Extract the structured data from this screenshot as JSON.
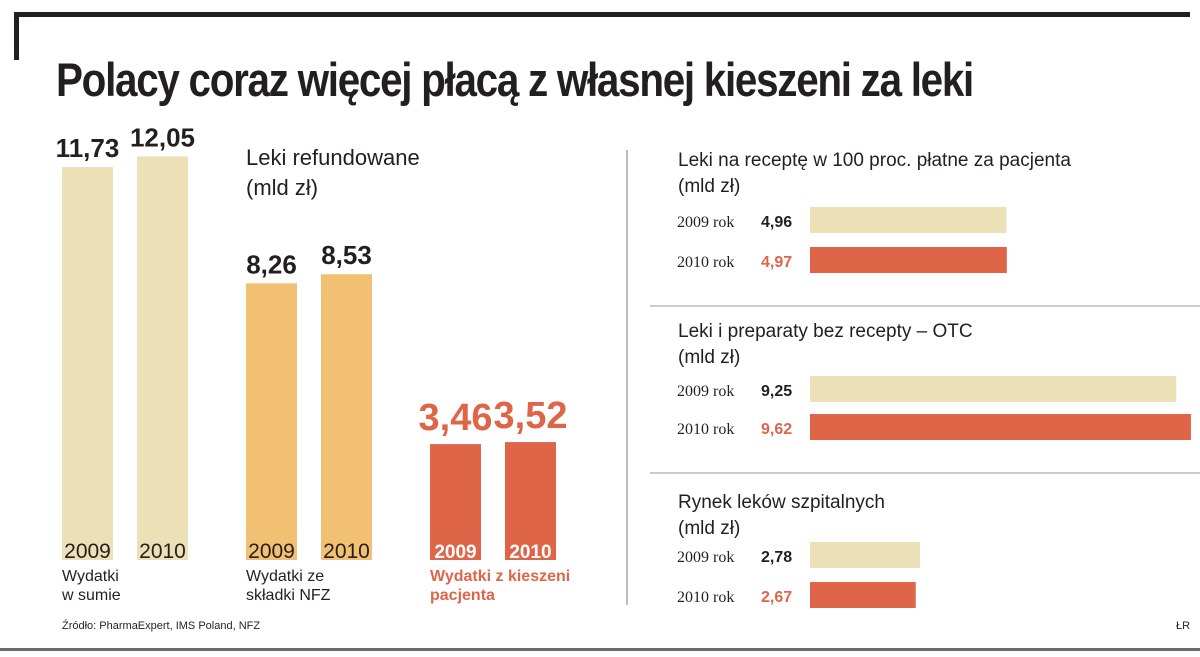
{
  "title": "Polacy coraz więcej płacą z własnej kieszeni za leki",
  "source": "Źródło: PharmaExpert, IMS Poland, NFZ",
  "credit": "ŁR",
  "colors": {
    "beige": "#ece0b7",
    "orange": "#f2c073",
    "red": "#df6548",
    "text": "#231f20"
  },
  "chart_data": [
    {
      "type": "bar",
      "title": "Leki refundowane",
      "unit": "(mld zł)",
      "categories": [
        "2009",
        "2010"
      ],
      "series": [
        {
          "name": "Wydatki w sumie",
          "values": [
            11.73,
            12.05
          ],
          "labels": [
            "11,73",
            "12,05"
          ],
          "color": "beige"
        },
        {
          "name": "Wydatki ze składki NFZ",
          "values": [
            8.26,
            8.53
          ],
          "labels": [
            "8,26",
            "8,53"
          ],
          "color": "orange"
        },
        {
          "name": "Wydatki z kieszeni pacjenta",
          "values": [
            3.46,
            3.52
          ],
          "labels": [
            "3,46",
            "3,52"
          ],
          "color": "red"
        }
      ],
      "group_labels": [
        "Wydatki\nw sumie",
        "Wydatki ze\nskładki NFZ",
        "Wydatki z kieszeni\npacjenta"
      ]
    },
    {
      "type": "bar",
      "orientation": "horizontal",
      "title": "Leki na receptę w 100 proc. płatne za pacjenta",
      "unit": "(mld zł)",
      "categories": [
        "2009 rok",
        "2010 rok"
      ],
      "values": [
        4.96,
        4.97
      ],
      "labels": [
        "4,96",
        "4,97"
      ]
    },
    {
      "type": "bar",
      "orientation": "horizontal",
      "title": "Leki i preparaty bez recepty – OTC",
      "unit": "(mld zł)",
      "categories": [
        "2009 rok",
        "2010 rok"
      ],
      "values": [
        9.25,
        9.62
      ],
      "labels": [
        "9,25",
        "9,62"
      ]
    },
    {
      "type": "bar",
      "orientation": "horizontal",
      "title": "Rynek leków szpitalnych",
      "unit": "(mld zł)",
      "categories": [
        "2009 rok",
        "2010 rok"
      ],
      "values": [
        2.78,
        2.67
      ],
      "labels": [
        "2,78",
        "2,67"
      ]
    }
  ]
}
